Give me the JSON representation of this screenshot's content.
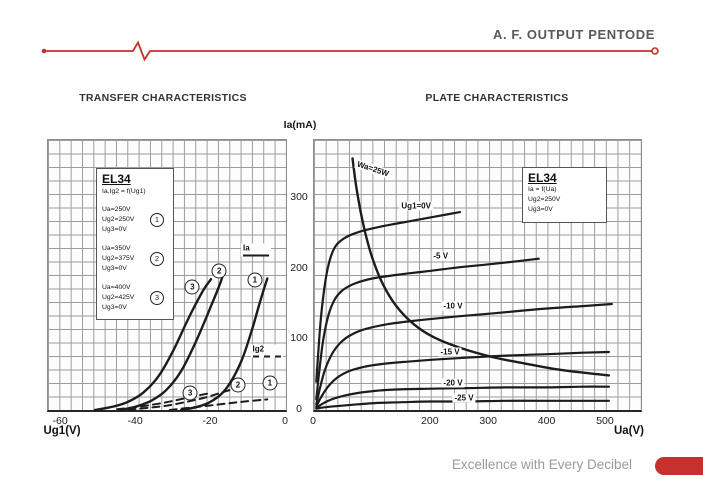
{
  "header": {
    "title": "A. F. OUTPUT PENTODE",
    "accent_color": "#c5322d"
  },
  "sections": {
    "left_title": "TRANSFER CHARACTERISTICS",
    "right_title": "PLATE CHARACTERISTICS"
  },
  "shared_y_axis": {
    "title": "Ia(mA)",
    "ticks": [
      0,
      100,
      200,
      300
    ]
  },
  "footer": {
    "tagline": "Excellence with Every Decibel"
  },
  "chart_data": [
    {
      "type": "line",
      "id": "transfer",
      "title": "TRANSFER CHARACTERISTICS",
      "xlabel": "Ug1(V)",
      "ylabel": "Ia(mA)",
      "xlim": [
        -63.5,
        0
      ],
      "ylim": [
        0,
        382
      ],
      "x_ticks": [
        -60,
        -40,
        -20,
        0
      ],
      "y_ticks": [
        0,
        100,
        200,
        300
      ],
      "grid": true,
      "legend_box": {
        "title": "EL34",
        "subtitle": "Ia,Ig2 = f(Ug1)",
        "groups": [
          {
            "num": "1",
            "lines": [
              "Ua=250V",
              "Ug2=250V",
              "Ug3=0V"
            ]
          },
          {
            "num": "2",
            "lines": [
              "Ua=350V",
              "Ug2=375V",
              "Ug3=0V"
            ]
          },
          {
            "num": "3",
            "lines": [
              "Ua=400V",
              "Ug2=425V",
              "Ug3=0V"
            ]
          }
        ]
      },
      "series": [
        {
          "name": "Ia curve 1 Ua=250V",
          "style": "solid",
          "width": 2.4,
          "points": [
            [
              -28,
              0
            ],
            [
              -24,
              4
            ],
            [
              -20,
              12
            ],
            [
              -16,
              30
            ],
            [
              -12,
              68
            ],
            [
              -9,
              115
            ],
            [
              -7,
              152
            ],
            [
              -5,
              186
            ]
          ]
        },
        {
          "name": "Ia curve 2 Ua=350V",
          "style": "solid",
          "width": 2.4,
          "points": [
            [
              -44,
              0
            ],
            [
              -40,
              5
            ],
            [
              -36,
              13
            ],
            [
              -32,
              28
            ],
            [
              -28,
              55
            ],
            [
              -24,
              97
            ],
            [
              -20,
              147
            ],
            [
              -17.5,
              180
            ],
            [
              -16.8,
              192
            ]
          ]
        },
        {
          "name": "Ia curve 3 Ua=400V",
          "style": "solid",
          "width": 2.4,
          "points": [
            [
              -51,
              0
            ],
            [
              -46,
              5
            ],
            [
              -42,
              12
            ],
            [
              -38,
              25
            ],
            [
              -34,
              48
            ],
            [
              -30,
              85
            ],
            [
              -26,
              130
            ],
            [
              -22,
              170
            ],
            [
              -20,
              185
            ]
          ]
        },
        {
          "name": "Ig2 curve 1",
          "style": "dashed",
          "width": 2,
          "points": [
            [
              -31,
              0
            ],
            [
              -26,
              3
            ],
            [
              -21,
              6
            ],
            [
              -16,
              9
            ],
            [
              -11,
              12
            ],
            [
              -5,
              15
            ]
          ]
        },
        {
          "name": "Ig2 curve 2",
          "style": "dashed",
          "width": 2,
          "points": [
            [
              -42,
              0
            ],
            [
              -37,
              3
            ],
            [
              -32,
              6
            ],
            [
              -27,
              11
            ],
            [
              -22,
              17
            ],
            [
              -17,
              25
            ],
            [
              -14,
              30
            ]
          ]
        },
        {
          "name": "Ig2 curve 3",
          "style": "dashed",
          "width": 2,
          "points": [
            [
              -45,
              1
            ],
            [
              -40,
              4
            ],
            [
              -35,
              8
            ],
            [
              -30,
              13
            ],
            [
              -25,
              19
            ],
            [
              -20,
              24
            ]
          ]
        }
      ],
      "labels": [
        {
          "text": "1",
          "shape": "circle",
          "x": -8.3,
          "y": 184
        },
        {
          "text": "2",
          "shape": "circle",
          "x": -17.8,
          "y": 197
        },
        {
          "text": "3",
          "shape": "circle",
          "x": -25,
          "y": 174
        },
        {
          "text": "3",
          "shape": "circle",
          "x": -25.6,
          "y": 24
        },
        {
          "text": "2",
          "shape": "circle",
          "x": -12.8,
          "y": 36
        },
        {
          "text": "1",
          "shape": "circle",
          "x": -4.3,
          "y": 38
        },
        {
          "text": "Ia",
          "shape": "key-solid",
          "x": -8,
          "y": 227
        },
        {
          "text": "Ig2",
          "shape": "key-dashed",
          "x": -5.2,
          "y": 83
        }
      ]
    },
    {
      "type": "line",
      "id": "plate",
      "title": "PLATE CHARACTERISTICS",
      "xlabel": "Ua(V)",
      "ylabel": "Ia(mA)",
      "xlim": [
        0,
        560
      ],
      "ylim": [
        0,
        382
      ],
      "x_ticks": [
        0,
        200,
        300,
        400,
        500
      ],
      "y_ticks": [
        0,
        100,
        200,
        300
      ],
      "grid": true,
      "legend_box": {
        "title": "EL34",
        "lines": [
          "Ia = f(Ua)",
          "Ug2=250V",
          "Ug3=0V"
        ]
      },
      "series": [
        {
          "name": "Wa=25W limit",
          "style": "solid",
          "width": 2.4,
          "points": [
            [
              66,
              356
            ],
            [
              72,
              318
            ],
            [
              80,
              280
            ],
            [
              90,
              243
            ],
            [
              102,
              210
            ],
            [
              118,
              178
            ],
            [
              140,
              148
            ],
            [
              170,
              122
            ],
            [
              205,
              103
            ],
            [
              250,
              88
            ],
            [
              305,
              75
            ],
            [
              360,
              66
            ],
            [
              420,
              57
            ],
            [
              470,
              52
            ],
            [
              505,
              49
            ]
          ]
        },
        {
          "name": "Ug1=0V",
          "style": "solid",
          "width": 2.2,
          "points": [
            [
              4,
              40
            ],
            [
              8,
              90
            ],
            [
              13,
              140
            ],
            [
              20,
              185
            ],
            [
              28,
              215
            ],
            [
              38,
              233
            ],
            [
              52,
              243
            ],
            [
              70,
              250
            ],
            [
              95,
              256
            ],
            [
              130,
              262
            ],
            [
              170,
              268
            ],
            [
              210,
              274
            ],
            [
              250,
              280
            ]
          ]
        },
        {
          "name": "Ug1=-5V",
          "style": "solid",
          "width": 2.2,
          "points": [
            [
              4,
              15
            ],
            [
              9,
              55
            ],
            [
              16,
              100
            ],
            [
              25,
              135
            ],
            [
              36,
              157
            ],
            [
              50,
              170
            ],
            [
              70,
              179
            ],
            [
              100,
              186
            ],
            [
              140,
              191
            ],
            [
              190,
              196
            ],
            [
              250,
              202
            ],
            [
              310,
              207
            ],
            [
              385,
              214
            ]
          ]
        },
        {
          "name": "Ug1=-10V",
          "style": "solid",
          "width": 2.2,
          "points": [
            [
              4,
              8
            ],
            [
              10,
              30
            ],
            [
              18,
              55
            ],
            [
              30,
              78
            ],
            [
              45,
              95
            ],
            [
              65,
              107
            ],
            [
              90,
              115
            ],
            [
              130,
              122
            ],
            [
              180,
              127
            ],
            [
              240,
              132
            ],
            [
              310,
              137
            ],
            [
              390,
              143
            ],
            [
              460,
              147
            ],
            [
              510,
              150
            ]
          ]
        },
        {
          "name": "Ug1=-15V",
          "style": "solid",
          "width": 2.2,
          "points": [
            [
              4,
              5
            ],
            [
              12,
              18
            ],
            [
              24,
              33
            ],
            [
              40,
              46
            ],
            [
              60,
              55
            ],
            [
              85,
              61
            ],
            [
              115,
              65
            ],
            [
              155,
              68
            ],
            [
              200,
              71
            ],
            [
              260,
              74
            ],
            [
              330,
              77
            ],
            [
              400,
              79
            ],
            [
              460,
              81
            ],
            [
              505,
              82
            ]
          ]
        },
        {
          "name": "Ug1=-20V",
          "style": "solid",
          "width": 2.2,
          "points": [
            [
              4,
              3
            ],
            [
              15,
              9
            ],
            [
              30,
              15
            ],
            [
              50,
              20
            ],
            [
              75,
              24
            ],
            [
              105,
              27
            ],
            [
              140,
              29
            ],
            [
              190,
              30
            ],
            [
              260,
              31
            ],
            [
              330,
              32
            ],
            [
              400,
              32
            ],
            [
              460,
              33
            ],
            [
              505,
              33
            ]
          ]
        },
        {
          "name": "Ug1=-25V",
          "style": "solid",
          "width": 2.2,
          "points": [
            [
              4,
              2
            ],
            [
              20,
              4
            ],
            [
              45,
              6
            ],
            [
              75,
              8
            ],
            [
              110,
              10
            ],
            [
              150,
              11
            ],
            [
              200,
              12
            ],
            [
              260,
              12
            ],
            [
              330,
              13
            ],
            [
              400,
              13
            ],
            [
              460,
              13
            ],
            [
              505,
              13
            ]
          ]
        }
      ],
      "labels": [
        {
          "text": "Wa=25W",
          "x": 101,
          "y": 341,
          "rot": 18
        },
        {
          "text": "Ug1=0V",
          "x": 175,
          "y": 288
        },
        {
          "text": "-5 V",
          "x": 217,
          "y": 218
        },
        {
          "text": "-10 V",
          "x": 238,
          "y": 147
        },
        {
          "text": "-15 V",
          "x": 233,
          "y": 82
        },
        {
          "text": "-20 V",
          "x": 238,
          "y": 38
        },
        {
          "text": "-25 V",
          "x": 257,
          "y": 17
        }
      ]
    }
  ]
}
